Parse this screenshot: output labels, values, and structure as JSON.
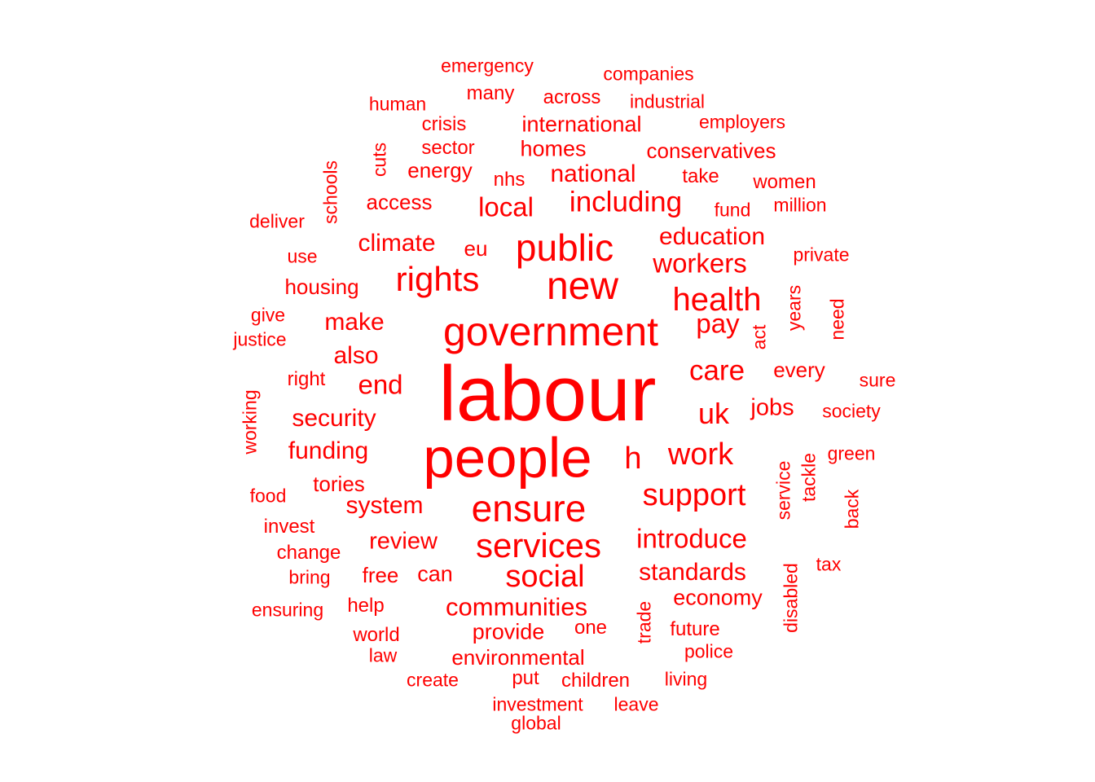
{
  "color": "#ff0000",
  "words": [
    {
      "text": "labour",
      "weight": 100
    },
    {
      "text": "people",
      "weight": 72
    },
    {
      "text": "government",
      "weight": 52
    },
    {
      "text": "ensure",
      "weight": 48
    },
    {
      "text": "new",
      "weight": 50
    },
    {
      "text": "public",
      "weight": 48
    },
    {
      "text": "services",
      "weight": 44
    },
    {
      "text": "rights",
      "weight": 44
    },
    {
      "text": "health",
      "weight": 42
    },
    {
      "text": "support",
      "weight": 40
    },
    {
      "text": "work",
      "weight": 40
    },
    {
      "text": "social",
      "weight": 40
    },
    {
      "text": "h",
      "weight": 40
    },
    {
      "text": "uk",
      "weight": 38
    },
    {
      "text": "care",
      "weight": 36
    },
    {
      "text": "including",
      "weight": 36
    },
    {
      "text": "introduce",
      "weight": 34
    },
    {
      "text": "communities",
      "weight": 32
    },
    {
      "text": "workers",
      "weight": 34
    },
    {
      "text": "local",
      "weight": 34
    },
    {
      "text": "end",
      "weight": 34
    },
    {
      "text": "pay",
      "weight": 34
    },
    {
      "text": "national",
      "weight": 31
    },
    {
      "text": "climate",
      "weight": 31
    },
    {
      "text": "make",
      "weight": 31
    },
    {
      "text": "security",
      "weight": 31
    },
    {
      "text": "funding",
      "weight": 31
    },
    {
      "text": "system",
      "weight": 31
    },
    {
      "text": "education",
      "weight": 31
    },
    {
      "text": "standards",
      "weight": 31
    },
    {
      "text": "also",
      "weight": 31
    },
    {
      "text": "review",
      "weight": 30
    },
    {
      "text": "jobs",
      "weight": 30
    },
    {
      "text": "provide",
      "weight": 28
    },
    {
      "text": "can",
      "weight": 28
    },
    {
      "text": "homes",
      "weight": 28
    },
    {
      "text": "international",
      "weight": 28
    },
    {
      "text": "economy",
      "weight": 28
    },
    {
      "text": "environmental",
      "weight": 27
    },
    {
      "text": "housing",
      "weight": 27
    },
    {
      "text": "conservatives",
      "weight": 27
    },
    {
      "text": "energy",
      "weight": 27
    },
    {
      "text": "access",
      "weight": 27
    },
    {
      "text": "eu",
      "weight": 27
    },
    {
      "text": "tories",
      "weight": 27
    },
    {
      "text": "free",
      "weight": 27
    },
    {
      "text": "every",
      "weight": 27
    },
    {
      "text": "sector",
      "weight": 25
    },
    {
      "text": "crisis",
      "weight": 25
    },
    {
      "text": "nhs",
      "weight": 25
    },
    {
      "text": "take",
      "weight": 25
    },
    {
      "text": "women",
      "weight": 25
    },
    {
      "text": "right",
      "weight": 25
    },
    {
      "text": "help",
      "weight": 25
    },
    {
      "text": "future",
      "weight": 25
    },
    {
      "text": "one",
      "weight": 25
    },
    {
      "text": "world",
      "weight": 25
    },
    {
      "text": "children",
      "weight": 25
    },
    {
      "text": "invest",
      "weight": 25
    },
    {
      "text": "change",
      "weight": 25
    },
    {
      "text": "put",
      "weight": 25
    },
    {
      "text": "many",
      "weight": 25
    },
    {
      "text": "across",
      "weight": 25
    },
    {
      "text": "companies",
      "weight": 24
    },
    {
      "text": "emergency",
      "weight": 24
    },
    {
      "text": "industrial",
      "weight": 24
    },
    {
      "text": "human",
      "weight": 24
    },
    {
      "text": "employers",
      "weight": 24
    },
    {
      "text": "fund",
      "weight": 24
    },
    {
      "text": "million",
      "weight": 24
    },
    {
      "text": "deliver",
      "weight": 24
    },
    {
      "text": "use",
      "weight": 24
    },
    {
      "text": "private",
      "weight": 24
    },
    {
      "text": "give",
      "weight": 24
    },
    {
      "text": "justice",
      "weight": 24
    },
    {
      "text": "sure",
      "weight": 24
    },
    {
      "text": "society",
      "weight": 24
    },
    {
      "text": "green",
      "weight": 24
    },
    {
      "text": "food",
      "weight": 24
    },
    {
      "text": "bring",
      "weight": 24
    },
    {
      "text": "tax",
      "weight": 24
    },
    {
      "text": "ensuring",
      "weight": 24
    },
    {
      "text": "police",
      "weight": 24
    },
    {
      "text": "living",
      "weight": 24
    },
    {
      "text": "law",
      "weight": 24
    },
    {
      "text": "create",
      "weight": 24
    },
    {
      "text": "investment",
      "weight": 24
    },
    {
      "text": "leave",
      "weight": 24
    },
    {
      "text": "global",
      "weight": 24
    },
    {
      "text": "schools",
      "weight": 24
    },
    {
      "text": "cuts",
      "weight": 24
    },
    {
      "text": "years",
      "weight": 24
    },
    {
      "text": "act",
      "weight": 24
    },
    {
      "text": "need",
      "weight": 24
    },
    {
      "text": "working",
      "weight": 24
    },
    {
      "text": "service",
      "weight": 24
    },
    {
      "text": "tackle",
      "weight": 24
    },
    {
      "text": "back",
      "weight": 24
    },
    {
      "text": "disabled",
      "weight": 24
    },
    {
      "text": "trade",
      "weight": 24
    }
  ]
}
